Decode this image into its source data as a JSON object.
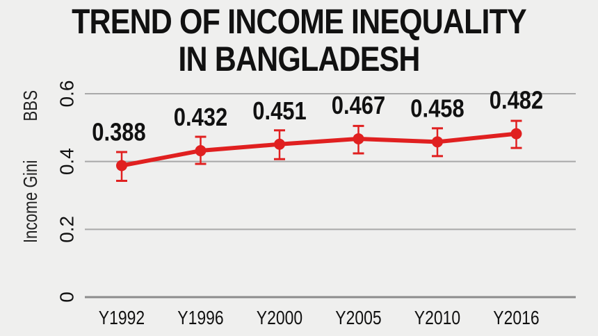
{
  "chart_data": {
    "type": "line",
    "title_lines": [
      "TREND OF INCOME INEQUALITY",
      "IN BANGLADESH"
    ],
    "ylabel_parts": [
      "Income Gini",
      "BBS"
    ],
    "xlabel": "",
    "categories": [
      "Y1992",
      "Y1996",
      "Y2000",
      "Y2005",
      "Y2010",
      "Y2016"
    ],
    "values": [
      0.388,
      0.432,
      0.451,
      0.467,
      0.458,
      0.482
    ],
    "value_labels": [
      "0.388",
      "0.432",
      "0.451",
      "0.467",
      "0.458",
      "0.482"
    ],
    "error_low": [
      0.343,
      0.393,
      0.407,
      0.424,
      0.416,
      0.44
    ],
    "error_high": [
      0.428,
      0.473,
      0.492,
      0.505,
      0.498,
      0.52
    ],
    "ylim": [
      0,
      0.6
    ],
    "yticks": [
      0,
      0.2,
      0.4,
      0.6
    ],
    "ytick_labels": [
      "0",
      "0.2",
      "0.4",
      "0.6"
    ],
    "grid": true,
    "legend": "none",
    "colors": {
      "line": "#e02020",
      "grid": "#a8a8a8",
      "text": "#111111",
      "background": "#efefee"
    }
  }
}
